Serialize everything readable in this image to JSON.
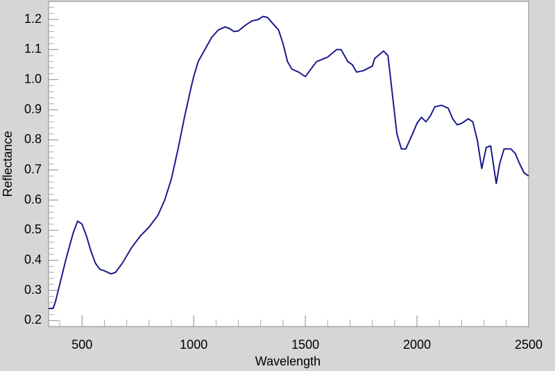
{
  "chart_data": {
    "type": "line",
    "xlabel": "Wavelength",
    "ylabel": "Reflectance",
    "xlim": [
      350,
      2500
    ],
    "ylim": [
      0.18,
      1.26
    ],
    "xticks": [
      500,
      1000,
      1500,
      2000,
      2500
    ],
    "xticks_minor": [
      400,
      600,
      700,
      800,
      900,
      1100,
      1200,
      1300,
      1400,
      1600,
      1700,
      1800,
      1900,
      2100,
      2200,
      2300,
      2400
    ],
    "yticks": [
      0.2,
      0.3,
      0.4,
      0.5,
      0.6,
      0.7,
      0.8,
      0.9,
      {
        "value": 1,
        "label": "1.0"
      },
      1.1,
      1.2
    ],
    "yticks_minor": [
      0.22,
      0.24,
      0.26,
      0.28,
      0.32,
      0.34,
      0.36,
      0.38,
      0.42,
      0.44,
      0.46,
      0.48,
      0.52,
      0.54,
      0.56,
      0.58,
      0.62,
      0.64,
      0.66,
      0.68,
      0.72,
      0.74,
      0.76,
      0.78,
      0.82,
      0.84,
      0.86,
      0.88,
      0.92,
      0.94,
      0.96,
      0.98,
      1.02,
      1.04,
      1.06,
      1.08,
      1.12,
      1.14,
      1.16,
      1.18,
      1.22,
      1.24
    ],
    "series": [
      {
        "color": "#1a1a8c",
        "x": [
          350,
          370,
          380,
          400,
          430,
          460,
          480,
          500,
          520,
          540,
          560,
          580,
          600,
          630,
          650,
          680,
          720,
          760,
          800,
          840,
          870,
          900,
          930,
          960,
          990,
          1000,
          1020,
          1050,
          1080,
          1110,
          1140,
          1160,
          1180,
          1200,
          1230,
          1260,
          1290,
          1310,
          1330,
          1350,
          1380,
          1400,
          1420,
          1440,
          1470,
          1500,
          1520,
          1550,
          1600,
          1640,
          1660,
          1690,
          1710,
          1730,
          1760,
          1800,
          1810,
          1850,
          1870,
          1890,
          1910,
          1930,
          1950,
          1980,
          2000,
          2020,
          2040,
          2060,
          2080,
          2110,
          2140,
          2160,
          2180,
          2200,
          2230,
          2250,
          2270,
          2290,
          2300,
          2310,
          2330,
          2340,
          2355,
          2370,
          2390,
          2420,
          2440,
          2460,
          2480,
          2500
        ],
        "values": [
          0.24,
          0.24,
          0.26,
          0.32,
          0.41,
          0.49,
          0.53,
          0.52,
          0.48,
          0.43,
          0.39,
          0.37,
          0.365,
          0.355,
          0.36,
          0.39,
          0.44,
          0.48,
          0.51,
          0.55,
          0.6,
          0.67,
          0.77,
          0.88,
          0.98,
          1.01,
          1.06,
          1.1,
          1.14,
          1.165,
          1.175,
          1.17,
          1.16,
          1.162,
          1.18,
          1.195,
          1.2,
          1.21,
          1.207,
          1.19,
          1.165,
          1.12,
          1.06,
          1.035,
          1.025,
          1.01,
          1.03,
          1.06,
          1.075,
          1.1,
          1.1,
          1.06,
          1.05,
          1.025,
          1.03,
          1.045,
          1.07,
          1.095,
          1.08,
          0.95,
          0.82,
          0.77,
          0.77,
          0.82,
          0.855,
          0.875,
          0.86,
          0.88,
          0.91,
          0.915,
          0.905,
          0.87,
          0.85,
          0.855,
          0.87,
          0.86,
          0.8,
          0.705,
          0.74,
          0.775,
          0.78,
          0.73,
          0.655,
          0.72,
          0.77,
          0.77,
          0.755,
          0.72,
          0.69,
          0.68
        ]
      }
    ]
  }
}
